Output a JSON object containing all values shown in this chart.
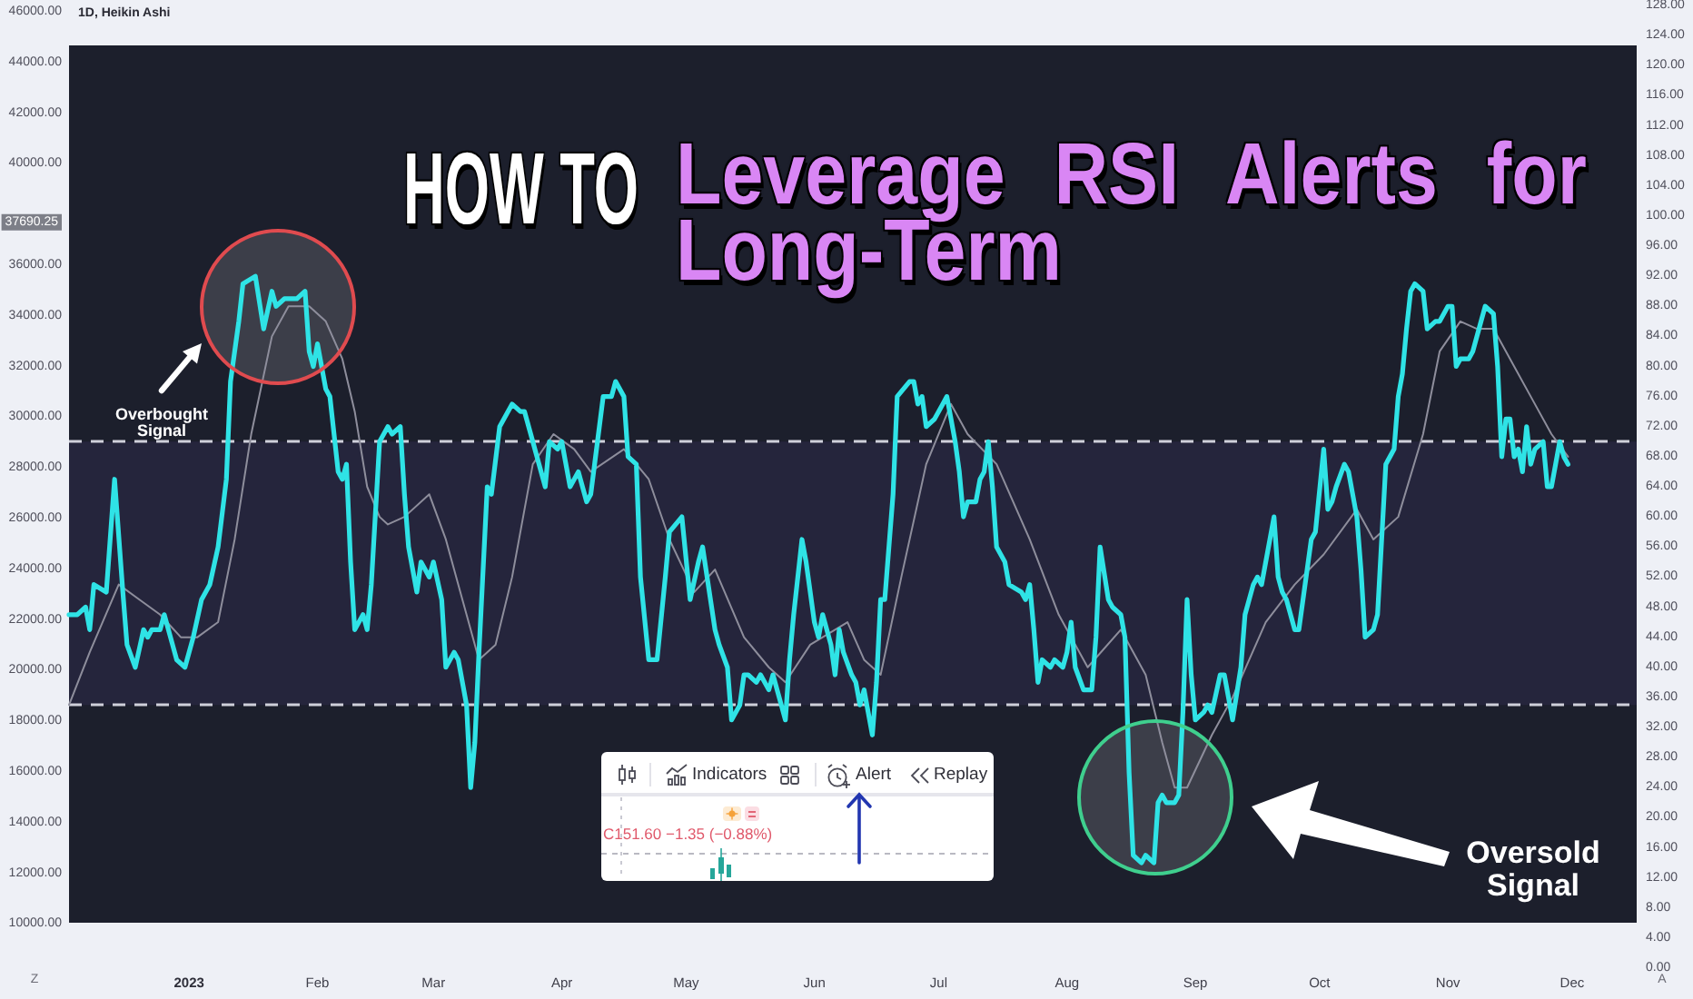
{
  "chart_data": {
    "type": "line",
    "title": "HOW TO",
    "subtitle": "Leverage RSI Alerts for Long-Term",
    "annotations": [
      "1D, Heikin Ashi",
      "Overbought Signal",
      "Oversold Signal",
      "Indicators",
      "Alert",
      "Replay",
      "C151.60 −1.35 (−0.88%)",
      "Z",
      "A"
    ],
    "xlim": [
      "2022-12-03",
      "2023-12-16T14:00"
    ],
    "xticks": [
      {
        "value": "2023-01-01",
        "label": "2023"
      },
      {
        "value": "2023-02-01",
        "label": "Feb"
      },
      {
        "value": "2023-03-01",
        "label": "Mar"
      },
      {
        "value": "2023-04-01",
        "label": "Apr"
      },
      {
        "value": "2023-05-01",
        "label": "May"
      },
      {
        "value": "2023-06-01",
        "label": "Jun"
      },
      {
        "value": "2023-07-01",
        "label": "Jul"
      },
      {
        "value": "2023-08-01",
        "label": "Aug"
      },
      {
        "value": "2023-09-01",
        "label": "Sep"
      },
      {
        "value": "2023-10-01",
        "label": "Oct"
      },
      {
        "value": "2023-11-01",
        "label": "Nov"
      },
      {
        "value": "2023-12-01",
        "label": "Dec"
      }
    ],
    "ylim": [
      8260,
      46250
    ],
    "yticks": [
      {
        "value": 10000,
        "label": "10000.00"
      },
      {
        "value": 12000,
        "label": "12000.00"
      },
      {
        "value": 14000,
        "label": "14000.00"
      },
      {
        "value": 16000,
        "label": "16000.00"
      },
      {
        "value": 18000,
        "label": "18000.00"
      },
      {
        "value": 20000,
        "label": "20000.00"
      },
      {
        "value": 22000,
        "label": "22000.00"
      },
      {
        "value": 24000,
        "label": "24000.00"
      },
      {
        "value": 26000,
        "label": "26000.00"
      },
      {
        "value": 28000,
        "label": "28000.00"
      },
      {
        "value": 30000,
        "label": "30000.00"
      },
      {
        "value": 32000,
        "label": "32000.00"
      },
      {
        "value": 34000,
        "label": "34000.00"
      },
      {
        "value": 36000,
        "label": "36000.00"
      },
      {
        "value": 37690.25,
        "label": "37690.25"
      },
      {
        "value": 40000,
        "label": "40000.00"
      },
      {
        "value": 42000,
        "label": "42000.00"
      },
      {
        "value": 44000,
        "label": "44000.00"
      },
      {
        "value": 46000,
        "label": "46000.00"
      }
    ],
    "y2lim": [
      0,
      128
    ],
    "y2ticks": [
      {
        "value": 0,
        "label": "0.00"
      },
      {
        "value": 4,
        "label": "4.00"
      },
      {
        "value": 8,
        "label": "8.00"
      },
      {
        "value": 12,
        "label": "12.00"
      },
      {
        "value": 16,
        "label": "16.00"
      },
      {
        "value": 20,
        "label": "20.00"
      },
      {
        "value": 24,
        "label": "24.00"
      },
      {
        "value": 28,
        "label": "28.00"
      },
      {
        "value": 32,
        "label": "32.00"
      },
      {
        "value": 36,
        "label": "36.00"
      },
      {
        "value": 40,
        "label": "40.00"
      },
      {
        "value": 44,
        "label": "44.00"
      },
      {
        "value": 48,
        "label": "48.00"
      },
      {
        "value": 52,
        "label": "52.00"
      },
      {
        "value": 56,
        "label": "56.00"
      },
      {
        "value": 60,
        "label": "60.00"
      },
      {
        "value": 64,
        "label": "64.00"
      },
      {
        "value": 68,
        "label": "68.00"
      },
      {
        "value": 72,
        "label": "72.00"
      },
      {
        "value": 76,
        "label": "76.00"
      },
      {
        "value": 80,
        "label": "80.00"
      },
      {
        "value": 84,
        "label": "84.00"
      },
      {
        "value": 88,
        "label": "88.00"
      },
      {
        "value": 92,
        "label": "92.00"
      },
      {
        "value": 96,
        "label": "96.00"
      },
      {
        "value": 100,
        "label": "100.00"
      },
      {
        "value": 104,
        "label": "104.00"
      },
      {
        "value": 108,
        "label": "108.00"
      },
      {
        "value": 112,
        "label": "112.00"
      },
      {
        "value": 116,
        "label": "116.00"
      },
      {
        "value": 120,
        "label": "120.00"
      },
      {
        "value": 124,
        "label": "124.00"
      },
      {
        "value": 128,
        "label": "128.00"
      }
    ],
    "series": [
      {
        "color": "#2fe3e6",
        "axis": "y2",
        "x": [
          "2022-12-03",
          "2022-12-05",
          "2022-12-07",
          "2022-12-08",
          "2022-12-09",
          "2022-12-12",
          "2022-12-14",
          "2022-12-16",
          "2022-12-17",
          "2022-12-19",
          "2022-12-21",
          "2022-12-22",
          "2022-12-23",
          "2022-12-25",
          "2022-12-26",
          "2022-12-28",
          "2022-12-29",
          "2022-12-31",
          "2023-01-02",
          "2023-01-04",
          "2023-01-06",
          "2023-01-08",
          "2023-01-10",
          "2023-01-11",
          "2023-01-13",
          "2023-01-14",
          "2023-01-17",
          "2023-01-19",
          "2023-01-21",
          "2023-01-22",
          "2023-01-24",
          "2023-01-27",
          "2023-01-29",
          "2023-01-30",
          "2023-01-31",
          "2023-02-01",
          "2023-02-03",
          "2023-02-04",
          "2023-02-06",
          "2023-02-07",
          "2023-02-08",
          "2023-02-09",
          "2023-02-10",
          "2023-02-12",
          "2023-02-13",
          "2023-02-14",
          "2023-02-16",
          "2023-02-18",
          "2023-02-19",
          "2023-02-21",
          "2023-02-22",
          "2023-02-23",
          "2023-02-25",
          "2023-02-26",
          "2023-02-28",
          "2023-03-01",
          "2023-03-03",
          "2023-03-04",
          "2023-03-06",
          "2023-03-07",
          "2023-03-09",
          "2023-03-10",
          "2023-03-11",
          "2023-03-12",
          "2023-03-14",
          "2023-03-15",
          "2023-03-17",
          "2023-03-20",
          "2023-03-22",
          "2023-03-23",
          "2023-03-25",
          "2023-03-28",
          "2023-03-29",
          "2023-03-31",
          "2023-04-01",
          "2023-04-03",
          "2023-04-05",
          "2023-04-07",
          "2023-04-08",
          "2023-04-11",
          "2023-04-13",
          "2023-04-14",
          "2023-04-16",
          "2023-04-17",
          "2023-04-19",
          "2023-04-20",
          "2023-04-22",
          "2023-04-23",
          "2023-04-24",
          "2023-04-26",
          "2023-04-27",
          "2023-04-30",
          "2023-05-02",
          "2023-05-04",
          "2023-05-05",
          "2023-05-08",
          "2023-05-09",
          "2023-05-11",
          "2023-05-12",
          "2023-05-14",
          "2023-05-15",
          "2023-05-16",
          "2023-05-18",
          "2023-05-19",
          "2023-05-21",
          "2023-05-22",
          "2023-05-24",
          "2023-05-25",
          "2023-05-26",
          "2023-05-27",
          "2023-05-29",
          "2023-05-30",
          "2023-06-01",
          "2023-06-02",
          "2023-06-03",
          "2023-06-05",
          "2023-06-06",
          "2023-06-07",
          "2023-06-08",
          "2023-06-10",
          "2023-06-11",
          "2023-06-12",
          "2023-06-13",
          "2023-06-15",
          "2023-06-16",
          "2023-06-17",
          "2023-06-18",
          "2023-06-20",
          "2023-06-21",
          "2023-06-24",
          "2023-06-25",
          "2023-06-26",
          "2023-06-27",
          "2023-06-28",
          "2023-06-30",
          "2023-07-02",
          "2023-07-03",
          "2023-07-05",
          "2023-07-06",
          "2023-07-07",
          "2023-07-08",
          "2023-07-10",
          "2023-07-11",
          "2023-07-12",
          "2023-07-13",
          "2023-07-14",
          "2023-07-15",
          "2023-07-17",
          "2023-07-18",
          "2023-07-21",
          "2023-07-22",
          "2023-07-23",
          "2023-07-24",
          "2023-07-25",
          "2023-07-26",
          "2023-07-28",
          "2023-07-29",
          "2023-07-31",
          "2023-08-01",
          "2023-08-02",
          "2023-08-03",
          "2023-08-05",
          "2023-08-07",
          "2023-08-08",
          "2023-08-09",
          "2023-08-11",
          "2023-08-12",
          "2023-08-14",
          "2023-08-15",
          "2023-08-16",
          "2023-08-17",
          "2023-08-19",
          "2023-08-20",
          "2023-08-22",
          "2023-08-23",
          "2023-08-24",
          "2023-08-25",
          "2023-08-27",
          "2023-08-28",
          "2023-08-29",
          "2023-08-30",
          "2023-08-31",
          "2023-09-01",
          "2023-09-03",
          "2023-09-04",
          "2023-09-05",
          "2023-09-07",
          "2023-09-08",
          "2023-09-09",
          "2023-09-10",
          "2023-09-12",
          "2023-09-13",
          "2023-09-15",
          "2023-09-16",
          "2023-09-17",
          "2023-09-19",
          "2023-09-20",
          "2023-09-21",
          "2023-09-22",
          "2023-09-23",
          "2023-09-25",
          "2023-09-26",
          "2023-09-28",
          "2023-09-29",
          "2023-09-30",
          "2023-10-02",
          "2023-10-03",
          "2023-10-04",
          "2023-10-05",
          "2023-10-07",
          "2023-10-08",
          "2023-10-10",
          "2023-10-11",
          "2023-10-12",
          "2023-10-14",
          "2023-10-15",
          "2023-10-16",
          "2023-10-17",
          "2023-10-18",
          "2023-10-19",
          "2023-10-20",
          "2023-10-21",
          "2023-10-22",
          "2023-10-23",
          "2023-10-24",
          "2023-10-26",
          "2023-10-27",
          "2023-10-29",
          "2023-10-30",
          "2023-11-01",
          "2023-11-02",
          "2023-11-03",
          "2023-11-04",
          "2023-11-06",
          "2023-11-07",
          "2023-11-09",
          "2023-11-10",
          "2023-11-12",
          "2023-11-13",
          "2023-11-14",
          "2023-11-15",
          "2023-11-16",
          "2023-11-17",
          "2023-11-18",
          "2023-11-19",
          "2023-11-20",
          "2023-11-21",
          "2023-11-22",
          "2023-11-24",
          "2023-11-25",
          "2023-11-26",
          "2023-11-27",
          "2023-11-28",
          "2023-11-29",
          "2023-11-30"
        ],
        "values": [
          47,
          47,
          48,
          45,
          51,
          50,
          65,
          50,
          43,
          40,
          45,
          44,
          45,
          45,
          47,
          43,
          41,
          40,
          44,
          49,
          51,
          56,
          65,
          78,
          86,
          91,
          92,
          85,
          90,
          88,
          89,
          89,
          90,
          82,
          80,
          83,
          77,
          76,
          66,
          65,
          67,
          54,
          45,
          47,
          45,
          51,
          70,
          72,
          71,
          72,
          63,
          56,
          50,
          54,
          52,
          54,
          49,
          40,
          42,
          41,
          35,
          24,
          30,
          42,
          64,
          63,
          72,
          75,
          74,
          74,
          70,
          64,
          70,
          69,
          70,
          64,
          66,
          62,
          63,
          76,
          76,
          78,
          76,
          68,
          67,
          52,
          41,
          41,
          41,
          52,
          58,
          60,
          49,
          54,
          56,
          45,
          43,
          40,
          33,
          35,
          39,
          39,
          38,
          39,
          37,
          39,
          35,
          33,
          41,
          47,
          57,
          54,
          46,
          44,
          47,
          43,
          39,
          45,
          42,
          39,
          38,
          35,
          37,
          31,
          38,
          49,
          49,
          63,
          76,
          78,
          78,
          75,
          76,
          72,
          73,
          75,
          76,
          70,
          66,
          60,
          62,
          62,
          65,
          66,
          70,
          64,
          56,
          54,
          51,
          50,
          49,
          51,
          45,
          38,
          41,
          40,
          41,
          40,
          42,
          46,
          40,
          37,
          37,
          44,
          56,
          49,
          48,
          47,
          44,
          26,
          15,
          14,
          15,
          14,
          22,
          23,
          22,
          22,
          23,
          34,
          49,
          39,
          33,
          34,
          35,
          34,
          39,
          39,
          36,
          33,
          40,
          47,
          51,
          52,
          51,
          57,
          60,
          52,
          50,
          49,
          45,
          45,
          53,
          57,
          58,
          69,
          61,
          62,
          64,
          67,
          66,
          60,
          53,
          44,
          45,
          47,
          57,
          67,
          68,
          69,
          76,
          79,
          85,
          90,
          91,
          90,
          85,
          86,
          86,
          88,
          88,
          80,
          81,
          81,
          82,
          86,
          88,
          87,
          80,
          68,
          73,
          73,
          68,
          69,
          66,
          72,
          67,
          69,
          70,
          64,
          64,
          67,
          70,
          68,
          67
        ]
      },
      {
        "color": "#8e8e9c",
        "axis": "y2",
        "x": [
          "2022-12-03",
          "2022-12-08",
          "2022-12-15",
          "2022-12-20",
          "2022-12-25",
          "2022-12-30",
          "2023-01-03",
          "2023-01-08",
          "2023-01-12",
          "2023-01-16",
          "2023-01-21",
          "2023-01-25",
          "2023-01-30",
          "2023-02-03",
          "2023-02-07",
          "2023-02-10",
          "2023-02-13",
          "2023-02-16",
          "2023-02-18",
          "2023-02-22",
          "2023-02-28",
          "2023-03-04",
          "2023-03-09",
          "2023-03-12",
          "2023-03-16",
          "2023-03-20",
          "2023-03-25",
          "2023-03-30",
          "2023-04-04",
          "2023-04-08",
          "2023-04-16",
          "2023-04-22",
          "2023-04-27",
          "2023-05-03",
          "2023-05-08",
          "2023-05-15",
          "2023-05-21",
          "2023-05-25",
          "2023-05-31",
          "2023-06-09",
          "2023-06-13",
          "2023-06-17",
          "2023-06-22",
          "2023-06-28",
          "2023-07-04",
          "2023-07-08",
          "2023-07-15",
          "2023-07-23",
          "2023-07-30",
          "2023-08-06",
          "2023-08-14",
          "2023-08-20",
          "2023-08-24",
          "2023-08-27",
          "2023-08-30",
          "2023-09-05",
          "2023-09-10",
          "2023-09-18",
          "2023-09-25",
          "2023-10-02",
          "2023-10-10",
          "2023-10-14",
          "2023-10-20",
          "2023-10-26",
          "2023-10-30",
          "2023-11-04",
          "2023-11-08",
          "2023-11-12",
          "2023-11-17",
          "2023-11-21",
          "2023-11-26",
          "2023-11-30"
        ],
        "values": [
          35,
          42,
          51,
          49,
          47,
          44,
          44,
          46,
          57,
          71,
          84,
          88,
          88,
          86,
          81,
          74,
          64,
          60,
          59,
          60,
          63,
          57,
          47,
          41,
          43,
          52,
          67,
          71,
          69,
          66,
          69,
          65,
          57,
          50,
          53,
          44,
          40,
          38,
          43,
          46,
          41,
          39,
          52,
          67,
          75,
          71,
          67,
          57,
          47,
          40,
          45,
          39,
          30,
          24,
          24,
          31,
          36,
          46,
          51,
          55,
          61,
          57,
          60,
          71,
          82,
          86,
          85,
          85,
          80,
          76,
          71,
          68
        ]
      }
    ],
    "ref_lines": [
      {
        "axis": "y2",
        "value": 70,
        "color": "#cfd0da",
        "line_style": "dashed"
      },
      {
        "axis": "y2",
        "value": 35,
        "color": "#cfd0da",
        "line_style": "dashed"
      }
    ],
    "bands": [
      {
        "axis": "y2",
        "from": 35,
        "to": 70,
        "color": "#25253c"
      }
    ]
  }
}
